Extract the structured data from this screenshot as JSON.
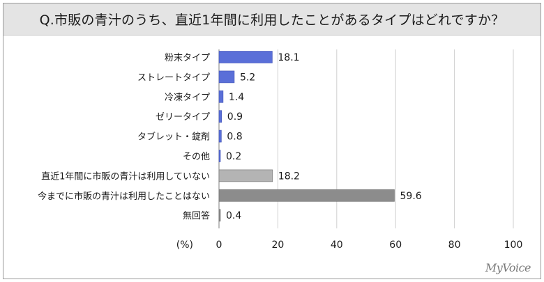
{
  "header": {
    "title": "Q.市販の青汁のうち、直近1年間に利用したことがあるタイプはどれですか？"
  },
  "brand": {
    "logo_text": "MyVoice"
  },
  "chart_data": {
    "type": "bar",
    "orientation": "horizontal",
    "categories": [
      "粉末タイプ",
      "ストレートタイプ",
      "冷凍タイプ",
      "ゼリータイプ",
      "タブレット・錠剤",
      "その他",
      "直近1年間に市販の青汁は利用していない",
      "今までに市販の青汁は利用したことはない",
      "無回答"
    ],
    "values": [
      18.1,
      5.2,
      1.4,
      0.9,
      0.8,
      0.2,
      18.2,
      59.6,
      0.4
    ],
    "unit_label": "(%)",
    "xlim": [
      0,
      100
    ],
    "xticks": [
      0,
      20,
      40,
      60,
      80,
      100
    ],
    "grid": true,
    "bar_colors": [
      "#5a6fd8",
      "#5a6fd8",
      "#5a6fd8",
      "#5a6fd8",
      "#5a6fd8",
      "#5a6fd8",
      "#b4b4b4",
      "#8c8c8c",
      "#8c8c8c"
    ]
  }
}
